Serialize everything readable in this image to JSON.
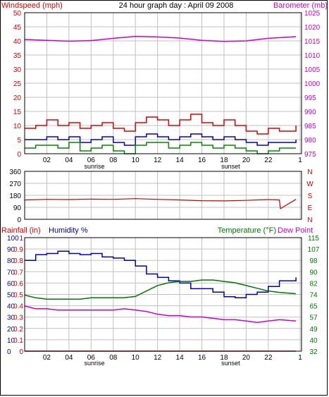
{
  "colors": {
    "wind": "#dd0000",
    "gust": "#dd0000",
    "avg": "#0000cc",
    "low": "#008800",
    "baro": "#cc00cc",
    "dir": "#cc0000",
    "rain": "#cc0000",
    "humidity": "#0000aa",
    "temperature": "#007700",
    "dewpoint": "#cc00cc",
    "grid": "#c0c0c0",
    "frame": "#000000"
  },
  "chart_data": [
    {
      "type": "line",
      "title": "24 hour graph day : April 09 2008",
      "y_left_label": "Windspeed (mph)",
      "y_right_label": "Barometer (mb)",
      "y_left_range": [
        0,
        50
      ],
      "y_left_ticks": [
        "0",
        "5",
        "10",
        "15",
        "20",
        "25",
        "30",
        "35",
        "40",
        "45",
        "50"
      ],
      "y_right_range": [
        975,
        1025
      ],
      "y_right_ticks": [
        "975",
        "980",
        "985",
        "990",
        "995",
        "1000",
        "1005",
        "1010",
        "1015",
        "1020",
        "1025"
      ],
      "x_ticks": [
        "02",
        "04",
        "06",
        "08",
        "10",
        "12",
        "14",
        "16",
        "18",
        "20",
        "22",
        "1"
      ],
      "x_markers": {
        "sunrise": 6.3,
        "sunset": 18.6
      },
      "x_range": [
        0,
        25
      ],
      "series": [
        {
          "id": "gust",
          "axis": "left",
          "x": [
            0,
            1,
            2,
            3,
            4,
            5,
            6,
            7,
            8,
            9,
            10,
            11,
            12,
            13,
            14,
            15,
            16,
            17,
            18,
            19,
            20,
            21,
            22,
            23,
            24.5
          ],
          "values": [
            9,
            10,
            12,
            10,
            11,
            9,
            10,
            11,
            9,
            8,
            11,
            13,
            12,
            10,
            12,
            14,
            11,
            10,
            12,
            10,
            8,
            7,
            9,
            8,
            10
          ]
        },
        {
          "id": "average",
          "axis": "left",
          "x": [
            0,
            1,
            2,
            3,
            4,
            5,
            6,
            7,
            8,
            9,
            10,
            11,
            12,
            13,
            14,
            15,
            16,
            17,
            18,
            19,
            20,
            21,
            22,
            23,
            24.5
          ],
          "values": [
            5,
            5,
            6,
            5,
            6,
            4,
            5,
            6,
            4,
            3,
            6,
            7,
            6,
            5,
            6,
            7,
            6,
            5,
            6,
            5,
            4,
            3,
            4,
            4,
            5
          ]
        },
        {
          "id": "low",
          "axis": "left",
          "x": [
            0,
            1,
            2,
            3,
            4,
            5,
            6,
            7,
            8,
            9,
            10,
            11,
            12,
            13,
            14,
            15,
            16,
            17,
            18,
            19,
            20,
            21,
            22,
            23,
            24.5
          ],
          "values": [
            2,
            3,
            3,
            2,
            4,
            1,
            2,
            3,
            1,
            0,
            3,
            4,
            4,
            2,
            3,
            4,
            3,
            2,
            3,
            2,
            1,
            0,
            1,
            2,
            2
          ]
        },
        {
          "id": "barometer",
          "axis": "right",
          "x": [
            0,
            2,
            4,
            6,
            8,
            10,
            12,
            14,
            16,
            18,
            20,
            22,
            24.5
          ],
          "values": [
            1015.5,
            1015.2,
            1014.9,
            1015.1,
            1015.9,
            1016.6,
            1016.4,
            1016.0,
            1015.2,
            1014.8,
            1015.0,
            1015.9,
            1016.5
          ]
        }
      ]
    },
    {
      "type": "line",
      "y_left_ticks": [
        "360",
        "270",
        "180",
        "90",
        "0"
      ],
      "y_left_range": [
        0,
        360
      ],
      "y_right_ticks": [
        "N",
        "W",
        "S",
        "E",
        "N"
      ],
      "x_range": [
        0,
        25
      ],
      "series": [
        {
          "id": "wind_direction",
          "x": [
            0,
            2,
            4,
            6,
            8,
            10,
            12,
            14,
            16,
            18,
            20,
            22,
            23.0,
            23.1,
            24.5
          ],
          "values": [
            145,
            150,
            148,
            152,
            150,
            155,
            150,
            145,
            140,
            138,
            142,
            148,
            145,
            80,
            150
          ]
        }
      ]
    },
    {
      "type": "line",
      "y_left_labels": [
        "Rainfall (in)",
        "Humidity %"
      ],
      "y_right_labels": [
        "Temperature (°F)",
        "Dew Point"
      ],
      "rain_ticks": [
        "0",
        "0.1",
        "0.2",
        "0.3",
        "0.4",
        "0.5",
        "0.6",
        "0.7",
        "0.8",
        "0.9",
        "1"
      ],
      "humidity_ticks": [
        "0",
        "10",
        "20",
        "30",
        "40",
        "50",
        "60",
        "70",
        "80",
        "90",
        "100"
      ],
      "temp_ticks": [
        "32",
        "40",
        "49",
        "57",
        "65",
        "74",
        "82",
        "90",
        "98",
        "107",
        "115"
      ],
      "humidity_range": [
        0,
        100
      ],
      "temp_range": [
        32,
        115
      ],
      "x_ticks": [
        "02",
        "04",
        "06",
        "08",
        "10",
        "12",
        "14",
        "16",
        "18",
        "20",
        "22",
        "1"
      ],
      "x_markers": {
        "sunrise": 6.3,
        "sunset": 18.6
      },
      "x_range": [
        0,
        25
      ],
      "series": [
        {
          "id": "humidity",
          "axis": "humidity",
          "x": [
            0,
            1,
            2,
            3,
            4,
            5,
            6,
            7,
            8,
            9,
            10,
            11,
            12,
            13,
            14,
            15,
            16,
            17,
            18,
            19,
            20,
            21,
            22,
            23,
            24.5
          ],
          "values": [
            80,
            85,
            86,
            88,
            86,
            85,
            86,
            83,
            82,
            80,
            75,
            68,
            65,
            62,
            60,
            55,
            55,
            52,
            48,
            47,
            50,
            52,
            57,
            62,
            65
          ]
        },
        {
          "id": "temperature",
          "axis": "temp",
          "x": [
            0,
            1,
            2,
            3,
            4,
            5,
            6,
            7,
            8,
            9,
            10,
            11,
            12,
            13,
            14,
            15,
            16,
            17,
            18,
            19,
            20,
            21,
            22,
            23,
            24.5
          ],
          "values": [
            73,
            71,
            70,
            70,
            70,
            70,
            71,
            71,
            71,
            71,
            72,
            76,
            80,
            82,
            83,
            83,
            84,
            84,
            83,
            82,
            80,
            78,
            76,
            75,
            74
          ]
        },
        {
          "id": "dewpoint",
          "axis": "temp",
          "x": [
            0,
            1,
            2,
            3,
            4,
            5,
            6,
            7,
            8,
            9,
            10,
            11,
            12,
            13,
            14,
            15,
            16,
            17,
            18,
            19,
            20,
            21,
            22,
            23,
            24.5
          ],
          "values": [
            65,
            63,
            63,
            62,
            62,
            62,
            62,
            62,
            62,
            63,
            62,
            61,
            59,
            58,
            58,
            57,
            57,
            56,
            55,
            55,
            54,
            53,
            54,
            55,
            54
          ]
        },
        {
          "id": "rainfall",
          "axis": "rain",
          "x": [
            0,
            24.5
          ],
          "values": [
            0,
            0
          ]
        }
      ]
    }
  ]
}
